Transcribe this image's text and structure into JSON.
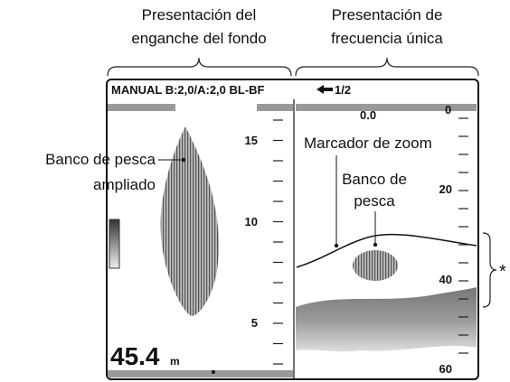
{
  "headers": {
    "left": [
      "Presentación del",
      "enganche del fondo"
    ],
    "right": [
      "Presentación de",
      "frecuencia única"
    ]
  },
  "status_bar": {
    "mode": "MANUAL B:2,0/A:2,0 BL-BF",
    "page": "1/2"
  },
  "left_panel": {
    "scale": [
      "15",
      "10",
      "5"
    ],
    "depth": "45.4",
    "unit": "m",
    "callout": [
      "Banco de pesca",
      "ampliado"
    ]
  },
  "right_panel": {
    "top_reading": "0.0",
    "scale": [
      "0",
      "20",
      "40",
      "60"
    ],
    "zoom_marker": "Marcador de zoom",
    "fish": [
      "Banco de",
      "pesca"
    ]
  },
  "bracket_label": "*"
}
